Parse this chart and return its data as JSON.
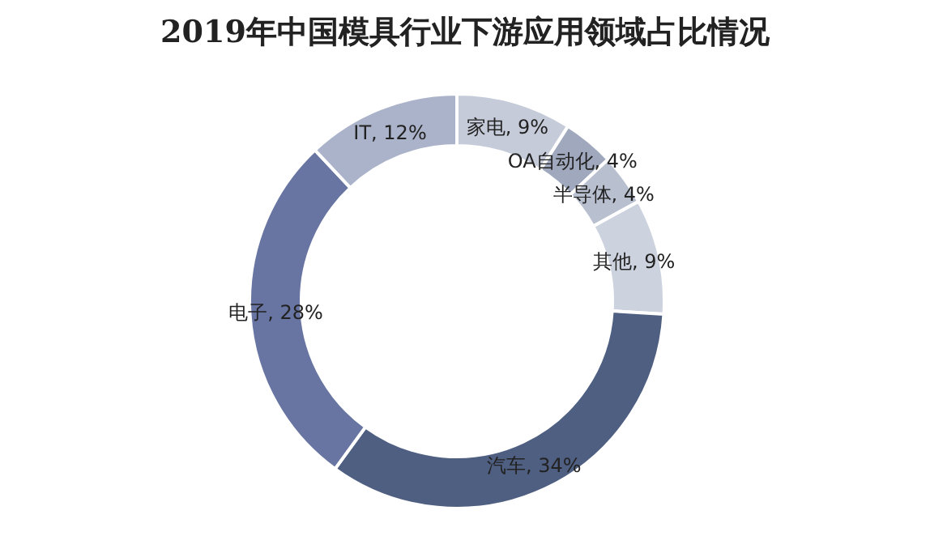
{
  "chart_data": {
    "type": "donut",
    "title": "2019年中国模具行业下游应用领域占比情况",
    "categories": [
      "家电",
      "OA自动化",
      "半导体",
      "其他",
      "汽车",
      "电子",
      "IT"
    ],
    "values": [
      9,
      4,
      4,
      9,
      34,
      28,
      12
    ],
    "colors": [
      "#c5cbd9",
      "#9fa8bd",
      "#b8bfcf",
      "#ccd2de",
      "#4f5f82",
      "#6875a2",
      "#aab3c9"
    ],
    "value_labels": [
      "9%",
      "4%",
      "4%",
      "9%",
      "34%",
      "28%",
      "12%"
    ]
  }
}
